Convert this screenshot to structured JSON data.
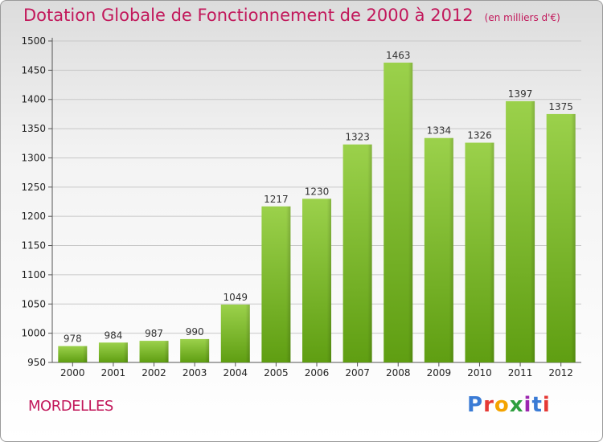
{
  "title": "Dotation Globale de Fonctionnement de 2000 à 2012",
  "unit_label": "(en milliers d'€)",
  "town": "MORDELLES",
  "logo": {
    "text": "Proxiti",
    "colors": [
      "#3a7bd5",
      "#e53935",
      "#f4a300",
      "#2e9e3e",
      "#9c27b0",
      "#3a7bd5",
      "#e53935"
    ]
  },
  "colors": {
    "title": "#c2185b",
    "bar_top": "#9bd14b",
    "bar_bottom": "#5f9e12",
    "grid": "#c8c8c8"
  },
  "chart_data": {
    "type": "bar",
    "categories": [
      "2000",
      "2001",
      "2002",
      "2003",
      "2004",
      "2005",
      "2006",
      "2007",
      "2008",
      "2009",
      "2010",
      "2011",
      "2012"
    ],
    "values": [
      978,
      984,
      987,
      990,
      1049,
      1217,
      1230,
      1323,
      1463,
      1334,
      1326,
      1397,
      1375
    ],
    "ylim": [
      950,
      1500
    ],
    "yticks": [
      950,
      1000,
      1050,
      1100,
      1150,
      1200,
      1250,
      1300,
      1350,
      1400,
      1450,
      1500
    ],
    "grid": true
  }
}
